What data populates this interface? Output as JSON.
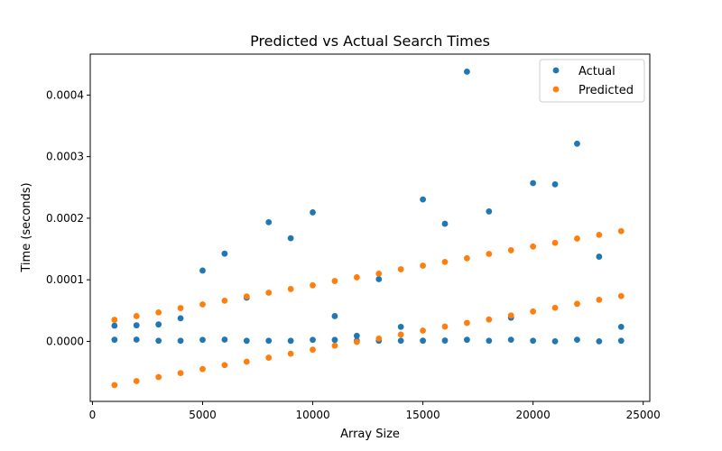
{
  "chart_data": {
    "type": "scatter",
    "title": "Predicted vs Actual Search Times",
    "xlabel": "Array Size",
    "ylabel": "Time (seconds)",
    "xlim": [
      -100,
      25300
    ],
    "ylim": [
      -9.75e-05,
      0.0004665
    ],
    "xticks": [
      0,
      5000,
      10000,
      15000,
      20000,
      25000
    ],
    "xtick_labels": [
      "0",
      "5000",
      "10000",
      "15000",
      "20000",
      "25000"
    ],
    "yticks": [
      0,
      0.0001,
      0.0002,
      0.0003,
      0.0004
    ],
    "ytick_labels": [
      "0.0000",
      "0.0001",
      "0.0002",
      "0.0003",
      "0.0004"
    ],
    "grid": false,
    "legend_position": "top-right",
    "series": [
      {
        "name": "Actual",
        "color": "#1f77b4",
        "points": [
          [
            1000,
            2.6e-06
          ],
          [
            2000,
            2.8e-06
          ],
          [
            3000,
            1e-06
          ],
          [
            4000,
            1e-06
          ],
          [
            5000,
            2.5e-06
          ],
          [
            6000,
            2.8e-06
          ],
          [
            7000,
            9e-07
          ],
          [
            8000,
            1e-06
          ],
          [
            9000,
            9e-07
          ],
          [
            10000,
            2.5e-06
          ],
          [
            11000,
            2.4e-06
          ],
          [
            12000,
            1e-06
          ],
          [
            13000,
            1e-06
          ],
          [
            14000,
            1e-06
          ],
          [
            15000,
            1.1e-06
          ],
          [
            16000,
            1.3e-06
          ],
          [
            17000,
            2.6e-06
          ],
          [
            18000,
            1e-06
          ],
          [
            19000,
            2.7e-06
          ],
          [
            20000,
            1e-06
          ],
          [
            21000,
            1e-07
          ],
          [
            22000,
            2.7e-06
          ],
          [
            23000,
            1e-07
          ],
          [
            24000,
            1e-06
          ],
          [
            1000,
            2.55e-05
          ],
          [
            2000,
            2.6e-05
          ],
          [
            3000,
            2.75e-05
          ],
          [
            4000,
            3.75e-05
          ],
          [
            5000,
            0.000115
          ],
          [
            6000,
            0.0001425
          ],
          [
            7000,
            7.1e-05
          ],
          [
            8000,
            0.0001935
          ],
          [
            9000,
            0.0001675
          ],
          [
            10000,
            0.0002095
          ],
          [
            11000,
            4.1e-05
          ],
          [
            12000,
            9e-06
          ],
          [
            13000,
            0.000101
          ],
          [
            14000,
            2.35e-05
          ],
          [
            15000,
            0.0002305
          ],
          [
            16000,
            0.000191
          ],
          [
            17000,
            0.000438
          ],
          [
            18000,
            0.000211
          ],
          [
            19000,
            3.85e-05
          ],
          [
            20000,
            0.000257
          ],
          [
            21000,
            0.000255
          ],
          [
            22000,
            0.000321
          ],
          [
            23000,
            0.0001375
          ],
          [
            24000,
            2.35e-05
          ]
        ]
      },
      {
        "name": "Predicted",
        "color": "#ff7f0e",
        "points": [
          [
            1000,
            3.5e-05
          ],
          [
            2000,
            4.1e-05
          ],
          [
            3000,
            4.7e-05
          ],
          [
            4000,
            5.4e-05
          ],
          [
            5000,
            6e-05
          ],
          [
            6000,
            6.6e-05
          ],
          [
            7000,
            7.3e-05
          ],
          [
            8000,
            7.9e-05
          ],
          [
            9000,
            8.5e-05
          ],
          [
            10000,
            9.1e-05
          ],
          [
            11000,
            9.8e-05
          ],
          [
            12000,
            0.000104
          ],
          [
            13000,
            0.00011
          ],
          [
            14000,
            0.000117
          ],
          [
            15000,
            0.000123
          ],
          [
            16000,
            0.000129
          ],
          [
            17000,
            0.000135
          ],
          [
            18000,
            0.000142
          ],
          [
            19000,
            0.000148
          ],
          [
            20000,
            0.000154
          ],
          [
            21000,
            0.00016
          ],
          [
            22000,
            0.000167
          ],
          [
            23000,
            0.000173
          ],
          [
            24000,
            0.000179
          ],
          [
            1000,
            -7.1e-05
          ],
          [
            2000,
            -6.45e-05
          ],
          [
            3000,
            -5.8e-05
          ],
          [
            4000,
            -5.15e-05
          ],
          [
            5000,
            -4.5e-05
          ],
          [
            6000,
            -3.85e-05
          ],
          [
            7000,
            -3.3e-05
          ],
          [
            8000,
            -2.65e-05
          ],
          [
            9000,
            -2e-05
          ],
          [
            10000,
            -1.35e-05
          ],
          [
            11000,
            -7e-06
          ],
          [
            12000,
            -1e-06
          ],
          [
            13000,
            4.5e-06
          ],
          [
            14000,
            1.1e-05
          ],
          [
            15000,
            1.75e-05
          ],
          [
            16000,
            2.4e-05
          ],
          [
            17000,
            3e-05
          ],
          [
            18000,
            3.55e-05
          ],
          [
            19000,
            4.2e-05
          ],
          [
            20000,
            4.85e-05
          ],
          [
            21000,
            5.45e-05
          ],
          [
            22000,
            6.1e-05
          ],
          [
            23000,
            6.75e-05
          ],
          [
            24000,
            7.35e-05
          ]
        ]
      }
    ]
  }
}
